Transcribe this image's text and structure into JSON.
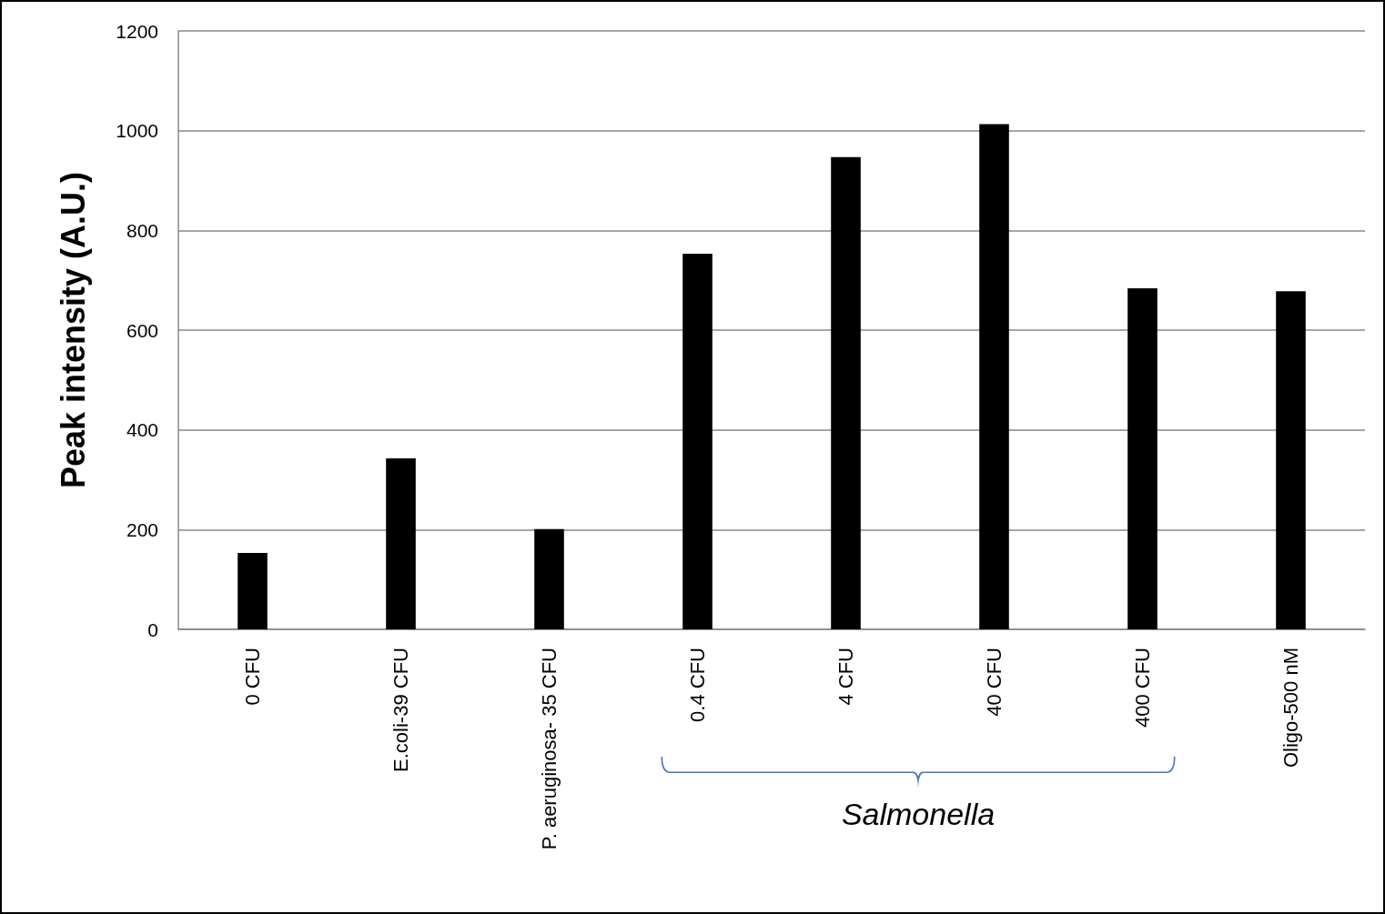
{
  "chart_data": {
    "type": "bar",
    "ylabel": "Peak intensity (A.U.)",
    "categories": [
      "0 CFU",
      "E.coli-39 CFU",
      "P. aeruginosa- 35 CFU",
      "0.4 CFU",
      "4 CFU",
      "40 CFU",
      "400 CFU",
      "Oligo-500 nM"
    ],
    "values": [
      153,
      343,
      201,
      753,
      947,
      1013,
      684,
      678
    ],
    "color": "#000000",
    "ylim": [
      0,
      1200
    ],
    "yticks": [
      0,
      200,
      400,
      600,
      800,
      1000,
      1200
    ],
    "grid": "y",
    "annotations": [
      "Salmonella"
    ]
  }
}
